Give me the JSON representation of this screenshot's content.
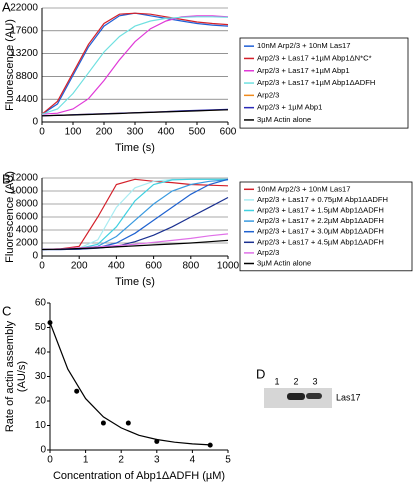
{
  "chart_data": [
    {
      "type": "line",
      "panel": "A",
      "x_label": "Time (s)",
      "y_label": "Fluorescence (AU)",
      "x": [
        0,
        50,
        100,
        150,
        200,
        250,
        300,
        350,
        400,
        450,
        500,
        550,
        600
      ],
      "xlim": [
        0,
        600
      ],
      "xticks": [
        0,
        100,
        200,
        300,
        400,
        500,
        600
      ],
      "ylim": [
        0,
        22000
      ],
      "yticks": [
        0,
        4400,
        8800,
        13200,
        17600,
        22000
      ],
      "grid": true,
      "series": [
        {
          "name": "10nM Arp2/3 + 10nM Las17",
          "color": "#1f5fd6",
          "values": [
            1500,
            3500,
            9000,
            14500,
            18500,
            20500,
            21000,
            20500,
            20000,
            19500,
            19000,
            18700,
            18500
          ]
        },
        {
          "name": "Arp2/3 + Las17 +1µM Abp1ΔN*C*",
          "color": "#d4202a",
          "values": [
            1500,
            4000,
            9500,
            15000,
            19000,
            20800,
            21000,
            20800,
            20300,
            19800,
            19300,
            19000,
            18800
          ]
        },
        {
          "name": "Arp2/3 + Las17 +1µM Abp1",
          "color": "#e03ad8",
          "values": [
            1500,
            1700,
            2500,
            4500,
            8000,
            12000,
            15500,
            18000,
            19500,
            20300,
            20500,
            20500,
            20300
          ]
        },
        {
          "name": "Arp2/3 + Las17 +1µM Abp1ΔADFH",
          "color": "#6fe0e0",
          "values": [
            1500,
            2500,
            5500,
            9500,
            13500,
            16500,
            18500,
            19500,
            20000,
            20200,
            20300,
            20300,
            20200
          ]
        },
        {
          "name": "Arp2/3",
          "color": "#f08a1c",
          "values": [
            1200,
            1300,
            1400,
            1500,
            1600,
            1700,
            1800,
            1900,
            2000,
            2100,
            2200,
            2300,
            2400
          ]
        },
        {
          "name": "Arp2/3 + 1µM Abp1",
          "color": "#2a2ab8",
          "values": [
            1200,
            1300,
            1400,
            1500,
            1600,
            1700,
            1800,
            1900,
            2000,
            2150,
            2250,
            2350,
            2450
          ]
        },
        {
          "name": "3µM Actin alone",
          "color": "#000000",
          "values": [
            1200,
            1280,
            1360,
            1450,
            1550,
            1650,
            1750,
            1850,
            1950,
            2050,
            2150,
            2250,
            2350
          ]
        }
      ]
    },
    {
      "type": "line",
      "panel": "B",
      "x_label": "Time (s)",
      "y_label": "Fluorescence (AU)",
      "x": [
        0,
        100,
        200,
        300,
        400,
        500,
        600,
        700,
        800,
        900,
        1000
      ],
      "xlim": [
        0,
        1000
      ],
      "xticks": [
        0,
        200,
        400,
        600,
        800,
        1000
      ],
      "ylim": [
        0,
        12000
      ],
      "yticks": [
        0,
        2000,
        4000,
        6000,
        8000,
        10000,
        12000
      ],
      "grid": true,
      "series": [
        {
          "name": "10nM Arp2/3 + 10nM Las17",
          "color": "#d4202a",
          "values": [
            1000,
            1100,
            1500,
            6000,
            11000,
            11800,
            11500,
            11300,
            11000,
            10900,
            10800
          ]
        },
        {
          "name": "Arp2/3 + Las17 + 0.75µM Abp1ΔADFH",
          "color": "#a8ecf2",
          "values": [
            1000,
            1050,
            1200,
            2500,
            7500,
            10500,
            11500,
            11800,
            11800,
            11800,
            11800
          ]
        },
        {
          "name": "Arp2/3 + Las17 + 1.5µM Abp1ΔADFH",
          "color": "#40d0e0",
          "values": [
            1000,
            1050,
            1150,
            1800,
            4500,
            8500,
            11000,
            11700,
            11800,
            11800,
            11800
          ]
        },
        {
          "name": "Arp2/3 + Las17 + 2.2µM Abp1ΔADFH",
          "color": "#3a9ae0",
          "values": [
            1000,
            1050,
            1100,
            1500,
            3000,
            5500,
            8000,
            10000,
            11000,
            11500,
            11700
          ]
        },
        {
          "name": "Arp2/3 + Las17 + 3.0µM Abp1ΔADFH",
          "color": "#1f62d0",
          "values": [
            1000,
            1000,
            1050,
            1300,
            2000,
            3500,
            5500,
            7500,
            9500,
            11000,
            11800
          ]
        },
        {
          "name": "Arp2/3 + Las17 + 4.5µM Abp1ΔADFH",
          "color": "#1a3090",
          "values": [
            1000,
            1000,
            1050,
            1200,
            1500,
            2200,
            3200,
            4500,
            6000,
            7500,
            9000
          ]
        },
        {
          "name": "Arp2/3",
          "color": "#e070e8",
          "values": [
            1000,
            1100,
            1250,
            1400,
            1600,
            1800,
            2100,
            2400,
            2700,
            3100,
            3400
          ]
        },
        {
          "name": "3µM Actin alone",
          "color": "#000000",
          "values": [
            1000,
            1050,
            1150,
            1250,
            1400,
            1550,
            1700,
            1850,
            2000,
            2200,
            2400
          ]
        }
      ]
    },
    {
      "type": "scatter",
      "panel": "C",
      "x_label": "Concentration of Abp1ΔADFH (µM)",
      "y_label": [
        "Rate of actin assembly",
        "(AU/s)"
      ],
      "xlim": [
        0,
        5
      ],
      "xticks": [
        0,
        1,
        2,
        3,
        4,
        5
      ],
      "ylim": [
        0,
        60
      ],
      "yticks": [
        0,
        10,
        20,
        30,
        40,
        50,
        60
      ],
      "grid": false,
      "series": [
        {
          "style": "points",
          "color": "#000000",
          "x": [
            0,
            0.75,
            1.5,
            2.2,
            3.0,
            4.5
          ],
          "values": [
            52,
            24,
            11,
            11,
            3.5,
            2
          ]
        },
        {
          "style": "line",
          "color": "#000000",
          "x": [
            0,
            0.5,
            1,
            1.5,
            2,
            2.5,
            3,
            3.5,
            4,
            4.5
          ],
          "values": [
            52,
            33,
            21,
            13.5,
            9,
            6,
            4.3,
            3.2,
            2.5,
            2.1
          ]
        }
      ]
    },
    {
      "type": "gel",
      "panel": "D",
      "lanes": [
        "1",
        "2",
        "3"
      ],
      "band_label": "Las17"
    }
  ]
}
